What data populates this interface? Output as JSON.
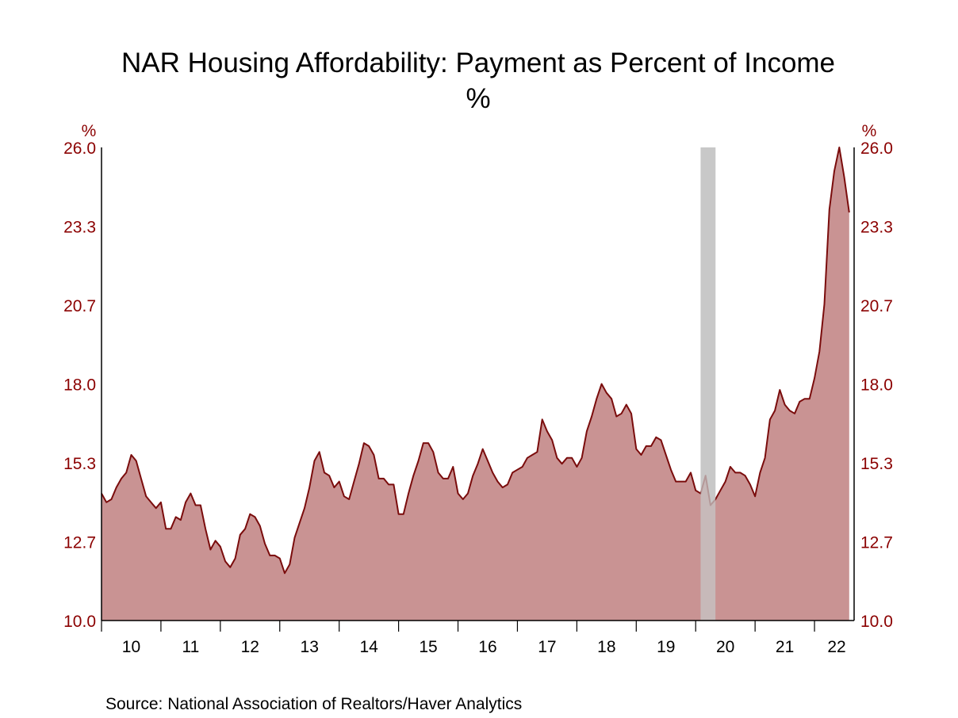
{
  "chart_data": {
    "type": "area",
    "title": "NAR Housing Affordability: Payment as Percent of Income",
    "subtitle": "%",
    "ylabel_left": "%",
    "ylabel_right": "%",
    "ylim": [
      10.0,
      26.0
    ],
    "yticks": [
      "26.0",
      "23.3",
      "20.7",
      "18.0",
      "15.3",
      "12.7",
      "10.0"
    ],
    "ytick_values": [
      26.0,
      23.33,
      20.67,
      18.0,
      15.33,
      12.67,
      10.0
    ],
    "xticks": [
      "10",
      "11",
      "12",
      "13",
      "14",
      "15",
      "16",
      "17",
      "18",
      "19",
      "20",
      "21",
      "22"
    ],
    "xrange": [
      "2010-01",
      "2022-09"
    ],
    "grid": false,
    "legend": "none",
    "recession": {
      "start": "2020-02",
      "end": "2020-04",
      "color": "#C8C8C8"
    },
    "colors": {
      "line": "#7A0C0C",
      "fill": "#C08080",
      "axis_text": "#8B0000"
    },
    "x": [
      "2010-01",
      "2010-02",
      "2010-03",
      "2010-04",
      "2010-05",
      "2010-06",
      "2010-07",
      "2010-08",
      "2010-09",
      "2010-10",
      "2010-11",
      "2010-12",
      "2011-01",
      "2011-02",
      "2011-03",
      "2011-04",
      "2011-05",
      "2011-06",
      "2011-07",
      "2011-08",
      "2011-09",
      "2011-10",
      "2011-11",
      "2011-12",
      "2012-01",
      "2012-02",
      "2012-03",
      "2012-04",
      "2012-05",
      "2012-06",
      "2012-07",
      "2012-08",
      "2012-09",
      "2012-10",
      "2012-11",
      "2012-12",
      "2013-01",
      "2013-02",
      "2013-03",
      "2013-04",
      "2013-05",
      "2013-06",
      "2013-07",
      "2013-08",
      "2013-09",
      "2013-10",
      "2013-11",
      "2013-12",
      "2014-01",
      "2014-02",
      "2014-03",
      "2014-04",
      "2014-05",
      "2014-06",
      "2014-07",
      "2014-08",
      "2014-09",
      "2014-10",
      "2014-11",
      "2014-12",
      "2015-01",
      "2015-02",
      "2015-03",
      "2015-04",
      "2015-05",
      "2015-06",
      "2015-07",
      "2015-08",
      "2015-09",
      "2015-10",
      "2015-11",
      "2015-12",
      "2016-01",
      "2016-02",
      "2016-03",
      "2016-04",
      "2016-05",
      "2016-06",
      "2016-07",
      "2016-08",
      "2016-09",
      "2016-10",
      "2016-11",
      "2016-12",
      "2017-01",
      "2017-02",
      "2017-03",
      "2017-04",
      "2017-05",
      "2017-06",
      "2017-07",
      "2017-08",
      "2017-09",
      "2017-10",
      "2017-11",
      "2017-12",
      "2018-01",
      "2018-02",
      "2018-03",
      "2018-04",
      "2018-05",
      "2018-06",
      "2018-07",
      "2018-08",
      "2018-09",
      "2018-10",
      "2018-11",
      "2018-12",
      "2019-01",
      "2019-02",
      "2019-03",
      "2019-04",
      "2019-05",
      "2019-06",
      "2019-07",
      "2019-08",
      "2019-09",
      "2019-10",
      "2019-11",
      "2019-12",
      "2020-01",
      "2020-02",
      "2020-03",
      "2020-04",
      "2020-05",
      "2020-06",
      "2020-07",
      "2020-08",
      "2020-09",
      "2020-10",
      "2020-11",
      "2020-12",
      "2021-01",
      "2021-02",
      "2021-03",
      "2021-04",
      "2021-05",
      "2021-06",
      "2021-07",
      "2021-08",
      "2021-09",
      "2021-10",
      "2021-11",
      "2021-12",
      "2022-01",
      "2022-02",
      "2022-03",
      "2022-04",
      "2022-05",
      "2022-06",
      "2022-07",
      "2022-08"
    ],
    "values": [
      14.3,
      14.0,
      14.1,
      14.5,
      14.8,
      15.0,
      15.6,
      15.4,
      14.8,
      14.2,
      14.0,
      13.8,
      14.0,
      13.1,
      13.1,
      13.5,
      13.4,
      14.0,
      14.3,
      13.9,
      13.9,
      13.1,
      12.4,
      12.7,
      12.5,
      12.0,
      11.8,
      12.1,
      12.9,
      13.1,
      13.6,
      13.5,
      13.2,
      12.6,
      12.2,
      12.2,
      12.1,
      11.6,
      11.9,
      12.8,
      13.3,
      13.8,
      14.5,
      15.4,
      15.7,
      15.0,
      14.9,
      14.5,
      14.7,
      14.2,
      14.1,
      14.7,
      15.3,
      16.0,
      15.9,
      15.6,
      14.8,
      14.8,
      14.6,
      14.6,
      13.6,
      13.6,
      14.3,
      14.9,
      15.4,
      16.0,
      16.0,
      15.7,
      15.0,
      14.8,
      14.8,
      15.2,
      14.3,
      14.1,
      14.3,
      14.9,
      15.3,
      15.8,
      15.4,
      15.0,
      14.7,
      14.5,
      14.6,
      15.0,
      15.1,
      15.2,
      15.5,
      15.6,
      15.7,
      16.8,
      16.4,
      16.1,
      15.5,
      15.3,
      15.5,
      15.5,
      15.2,
      15.5,
      16.4,
      16.9,
      17.5,
      18.0,
      17.7,
      17.5,
      16.9,
      17.0,
      17.3,
      17.0,
      15.8,
      15.6,
      15.9,
      15.9,
      16.2,
      16.1,
      15.6,
      15.1,
      14.7,
      14.7,
      14.7,
      15.0,
      14.4,
      14.3,
      14.9,
      13.9,
      14.1,
      14.4,
      14.7,
      15.2,
      15.0,
      15.0,
      14.9,
      14.6,
      14.2,
      15.0,
      15.5,
      16.8,
      17.1,
      17.8,
      17.3,
      17.1,
      17.0,
      17.4,
      17.5,
      17.5,
      18.2,
      19.1,
      20.7,
      23.9,
      25.2,
      26.0,
      25.0,
      23.8
    ],
    "source": "Source:  National Association of Realtors/Haver Analytics"
  }
}
